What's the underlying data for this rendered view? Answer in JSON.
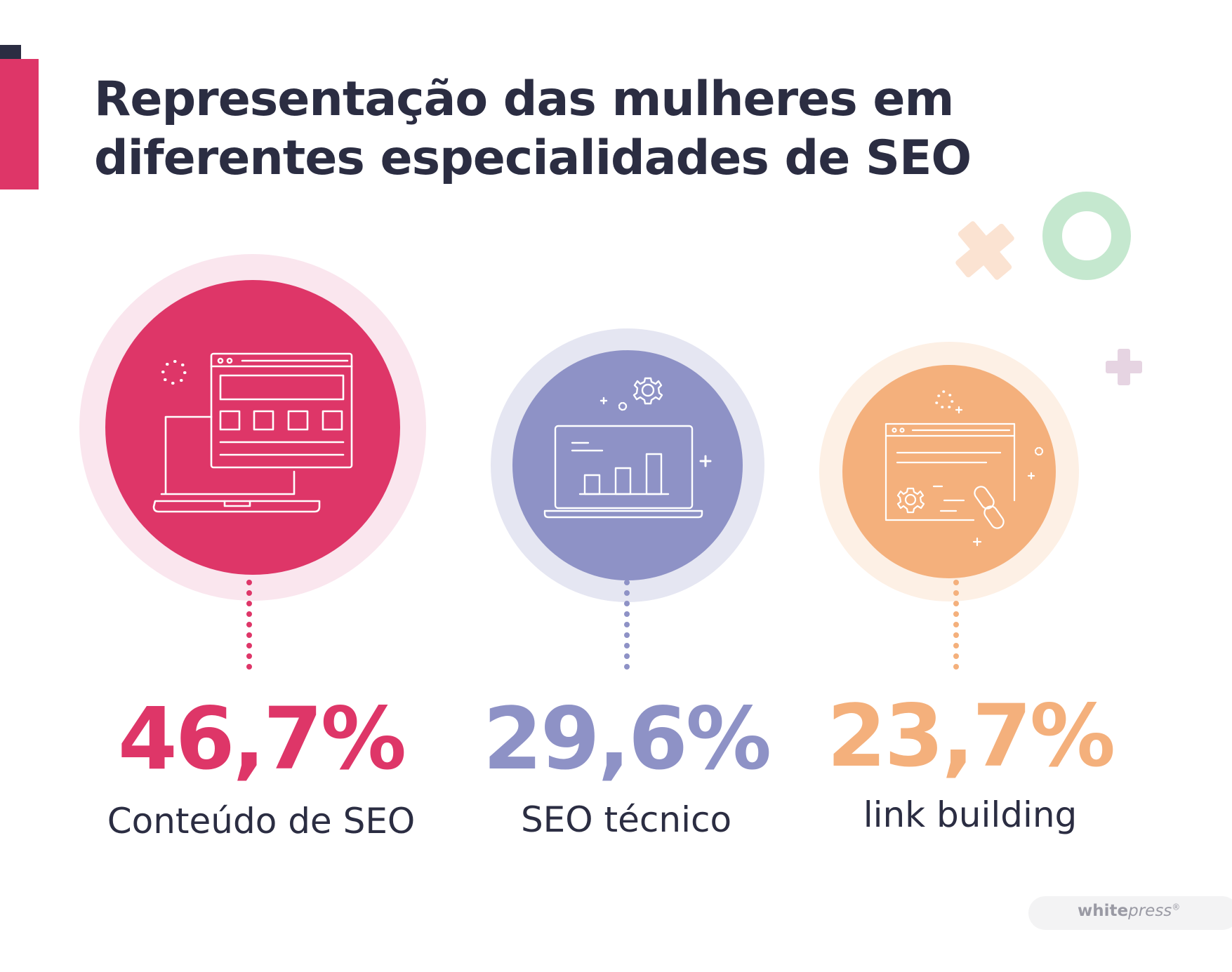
{
  "title": {
    "line1": "Representação das mulheres em",
    "line2": "diferentes especialidades de SEO"
  },
  "chart_data": {
    "type": "bubble-infographic",
    "unit": "%",
    "categories": [
      "Conteúdo de SEO",
      "SEO técnico",
      "link building"
    ],
    "values": [
      46.7,
      29.6,
      23.7
    ],
    "value_labels": [
      "46,7%",
      "29,6%",
      "23,7%"
    ],
    "colors": [
      "#de3668",
      "#8e92c6",
      "#f4b07c"
    ],
    "icons": [
      "web-content-layout-icon",
      "analytics-laptop-icon",
      "link-building-icon"
    ]
  },
  "brand": {
    "name_bold": "white",
    "name_italic": "press",
    "mark": "®"
  }
}
